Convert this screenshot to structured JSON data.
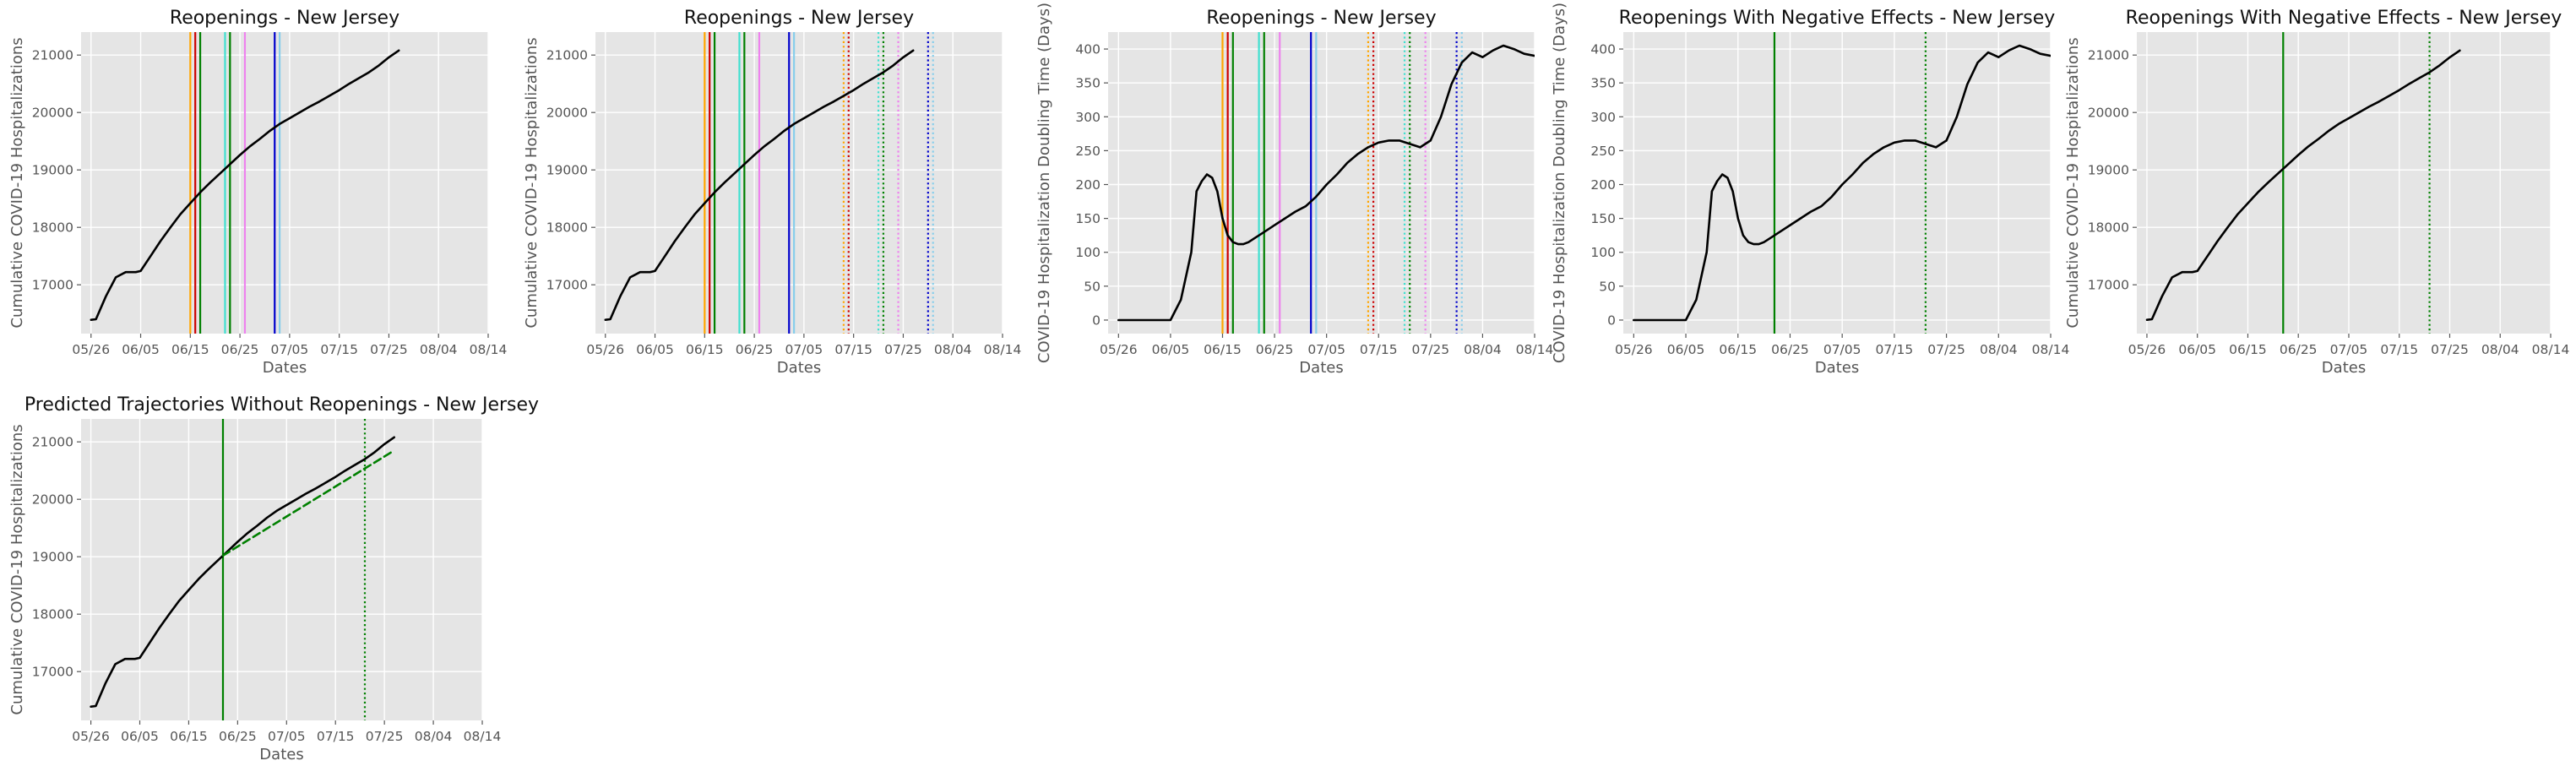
{
  "chart_data": [
    {
      "type": "line",
      "title": "Reopenings - New Jersey",
      "xlabel": "Dates",
      "ylabel": "Cumulative COVID-19 Hospitalizations",
      "x_ticks": [
        "05/26",
        "06/05",
        "06/15",
        "06/25",
        "07/05",
        "07/15",
        "07/25",
        "08/04",
        "08/14"
      ],
      "y_ticks": [
        17000,
        18000,
        19000,
        20000,
        21000
      ],
      "xlim": [
        "05/24",
        "08/14"
      ],
      "ylim": [
        16150,
        21400
      ],
      "grid": true,
      "series": [
        {
          "color": "#000000",
          "style": "solid",
          "x": [
            "05/26",
            "05/27",
            "05/29",
            "05/31",
            "06/02",
            "06/04",
            "06/05",
            "06/07",
            "06/09",
            "06/11",
            "06/13",
            "06/15",
            "06/17",
            "06/19",
            "06/21",
            "06/23",
            "06/25",
            "06/27",
            "06/29",
            "07/01",
            "07/03",
            "07/05",
            "07/07",
            "07/09",
            "07/11",
            "07/13",
            "07/15",
            "07/17",
            "07/19",
            "07/21",
            "07/23",
            "07/25",
            "07/27"
          ],
          "y": [
            16390,
            16400,
            16800,
            17130,
            17220,
            17220,
            17240,
            17500,
            17760,
            18000,
            18230,
            18420,
            18610,
            18780,
            18940,
            19100,
            19260,
            19410,
            19540,
            19680,
            19800,
            19900,
            20000,
            20100,
            20190,
            20290,
            20390,
            20500,
            20600,
            20700,
            20820,
            20960,
            21080
          ]
        }
      ],
      "vlines": [
        {
          "x": "06/15",
          "color": "#ffa500",
          "style": "solid"
        },
        {
          "x": "06/16",
          "color": "#cc0000",
          "style": "solid"
        },
        {
          "x": "06/17",
          "color": "#008000",
          "style": "solid"
        },
        {
          "x": "06/22",
          "color": "#40e0d0",
          "style": "solid"
        },
        {
          "x": "06/23",
          "color": "#008000",
          "style": "solid"
        },
        {
          "x": "06/26",
          "color": "#ee82ee",
          "style": "solid"
        },
        {
          "x": "07/02",
          "color": "#0000cc",
          "style": "solid"
        },
        {
          "x": "07/03",
          "color": "#87ceeb",
          "style": "solid"
        }
      ]
    },
    {
      "type": "line",
      "title": "Reopenings - New Jersey",
      "xlabel": "Dates",
      "ylabel": "Cumulative COVID-19 Hospitalizations",
      "x_ticks": [
        "05/26",
        "06/05",
        "06/15",
        "06/25",
        "07/05",
        "07/15",
        "07/25",
        "08/04",
        "08/14"
      ],
      "y_ticks": [
        17000,
        18000,
        19000,
        20000,
        21000
      ],
      "xlim": [
        "05/24",
        "08/14"
      ],
      "ylim": [
        16150,
        21400
      ],
      "grid": true,
      "series": [
        {
          "color": "#000000",
          "style": "solid",
          "x": [
            "05/26",
            "05/27",
            "05/29",
            "05/31",
            "06/02",
            "06/04",
            "06/05",
            "06/07",
            "06/09",
            "06/11",
            "06/13",
            "06/15",
            "06/17",
            "06/19",
            "06/21",
            "06/23",
            "06/25",
            "06/27",
            "06/29",
            "07/01",
            "07/03",
            "07/05",
            "07/07",
            "07/09",
            "07/11",
            "07/13",
            "07/15",
            "07/17",
            "07/19",
            "07/21",
            "07/23",
            "07/25",
            "07/27"
          ],
          "y": [
            16390,
            16400,
            16800,
            17130,
            17220,
            17220,
            17240,
            17500,
            17760,
            18000,
            18230,
            18420,
            18610,
            18780,
            18940,
            19100,
            19260,
            19410,
            19540,
            19680,
            19800,
            19900,
            20000,
            20100,
            20190,
            20290,
            20390,
            20500,
            20600,
            20700,
            20820,
            20960,
            21080
          ]
        }
      ],
      "vlines": [
        {
          "x": "06/15",
          "color": "#ffa500",
          "style": "solid"
        },
        {
          "x": "06/16",
          "color": "#cc0000",
          "style": "solid"
        },
        {
          "x": "06/17",
          "color": "#008000",
          "style": "solid"
        },
        {
          "x": "06/22",
          "color": "#40e0d0",
          "style": "solid"
        },
        {
          "x": "06/23",
          "color": "#008000",
          "style": "solid"
        },
        {
          "x": "06/26",
          "color": "#ee82ee",
          "style": "solid"
        },
        {
          "x": "07/02",
          "color": "#0000cc",
          "style": "solid"
        },
        {
          "x": "07/03",
          "color": "#87ceeb",
          "style": "solid"
        },
        {
          "x": "07/13",
          "color": "#ffa500",
          "style": "dotted"
        },
        {
          "x": "07/14",
          "color": "#cc0000",
          "style": "dotted"
        },
        {
          "x": "07/20",
          "color": "#40e0d0",
          "style": "dotted"
        },
        {
          "x": "07/21",
          "color": "#008000",
          "style": "dotted"
        },
        {
          "x": "07/24",
          "color": "#ee82ee",
          "style": "dotted"
        },
        {
          "x": "07/30",
          "color": "#0000cc",
          "style": "dotted"
        },
        {
          "x": "07/31",
          "color": "#87ceeb",
          "style": "dotted"
        }
      ]
    },
    {
      "type": "line",
      "title": "Reopenings - New Jersey",
      "xlabel": "Dates",
      "ylabel": "COVID-19 Hospitalization Doubling Time (Days)",
      "x_ticks": [
        "05/26",
        "06/05",
        "06/15",
        "06/25",
        "07/05",
        "07/15",
        "07/25",
        "08/04",
        "08/14"
      ],
      "y_ticks": [
        0,
        50,
        100,
        150,
        200,
        250,
        300,
        350,
        400
      ],
      "xlim": [
        "05/24",
        "08/14"
      ],
      "ylim": [
        -20,
        425
      ],
      "grid": true,
      "series": [
        {
          "color": "#000000",
          "style": "solid",
          "x": [
            "05/26",
            "05/28",
            "05/30",
            "06/01",
            "06/03",
            "06/05",
            "06/07",
            "06/09",
            "06/10",
            "06/11",
            "06/12",
            "06/13",
            "06/14",
            "06/15",
            "06/16",
            "06/17",
            "06/18",
            "06/19",
            "06/20",
            "06/21",
            "06/23",
            "06/25",
            "06/27",
            "06/29",
            "07/01",
            "07/03",
            "07/05",
            "07/07",
            "07/09",
            "07/11",
            "07/13",
            "07/15",
            "07/17",
            "07/19",
            "07/21",
            "07/23",
            "07/25",
            "07/27",
            "07/29",
            "07/31",
            "08/02",
            "08/04",
            "08/06",
            "08/08",
            "08/10",
            "08/12",
            "08/14"
          ],
          "y": [
            0,
            0,
            0,
            0,
            0,
            0,
            30,
            100,
            190,
            205,
            215,
            210,
            190,
            150,
            125,
            115,
            112,
            112,
            115,
            120,
            130,
            140,
            150,
            160,
            168,
            182,
            200,
            215,
            232,
            245,
            255,
            262,
            265,
            265,
            260,
            255,
            265,
            300,
            348,
            380,
            395,
            388,
            398,
            405,
            400,
            393,
            390
          ]
        }
      ],
      "vlines": [
        {
          "x": "06/15",
          "color": "#ffa500",
          "style": "solid"
        },
        {
          "x": "06/16",
          "color": "#cc0000",
          "style": "solid"
        },
        {
          "x": "06/17",
          "color": "#008000",
          "style": "solid"
        },
        {
          "x": "06/22",
          "color": "#40e0d0",
          "style": "solid"
        },
        {
          "x": "06/23",
          "color": "#008000",
          "style": "solid"
        },
        {
          "x": "06/26",
          "color": "#ee82ee",
          "style": "solid"
        },
        {
          "x": "07/02",
          "color": "#0000cc",
          "style": "solid"
        },
        {
          "x": "07/03",
          "color": "#87ceeb",
          "style": "solid"
        },
        {
          "x": "07/13",
          "color": "#ffa500",
          "style": "dotted"
        },
        {
          "x": "07/14",
          "color": "#cc0000",
          "style": "dotted"
        },
        {
          "x": "07/20",
          "color": "#40e0d0",
          "style": "dotted"
        },
        {
          "x": "07/21",
          "color": "#008000",
          "style": "dotted"
        },
        {
          "x": "07/24",
          "color": "#ee82ee",
          "style": "dotted"
        },
        {
          "x": "07/30",
          "color": "#0000cc",
          "style": "dotted"
        },
        {
          "x": "07/31",
          "color": "#87ceeb",
          "style": "dotted"
        }
      ]
    },
    {
      "type": "line",
      "title": "Reopenings With Negative Effects - New Jersey",
      "xlabel": "Dates",
      "ylabel": "COVID-19 Hospitalization Doubling Time (Days)",
      "x_ticks": [
        "05/26",
        "06/05",
        "06/15",
        "06/25",
        "07/05",
        "07/15",
        "07/25",
        "08/04",
        "08/14"
      ],
      "y_ticks": [
        0,
        50,
        100,
        150,
        200,
        250,
        300,
        350,
        400
      ],
      "xlim": [
        "05/24",
        "08/14"
      ],
      "ylim": [
        -20,
        425
      ],
      "grid": true,
      "series": [
        {
          "color": "#000000",
          "style": "solid",
          "x": [
            "05/26",
            "05/28",
            "05/30",
            "06/01",
            "06/03",
            "06/05",
            "06/07",
            "06/09",
            "06/10",
            "06/11",
            "06/12",
            "06/13",
            "06/14",
            "06/15",
            "06/16",
            "06/17",
            "06/18",
            "06/19",
            "06/20",
            "06/21",
            "06/23",
            "06/25",
            "06/27",
            "06/29",
            "07/01",
            "07/03",
            "07/05",
            "07/07",
            "07/09",
            "07/11",
            "07/13",
            "07/15",
            "07/17",
            "07/19",
            "07/21",
            "07/23",
            "07/25",
            "07/27",
            "07/29",
            "07/31",
            "08/02",
            "08/04",
            "08/06",
            "08/08",
            "08/10",
            "08/12",
            "08/14"
          ],
          "y": [
            0,
            0,
            0,
            0,
            0,
            0,
            30,
            100,
            190,
            205,
            215,
            210,
            190,
            150,
            125,
            115,
            112,
            112,
            115,
            120,
            130,
            140,
            150,
            160,
            168,
            182,
            200,
            215,
            232,
            245,
            255,
            262,
            265,
            265,
            260,
            255,
            265,
            300,
            348,
            380,
            395,
            388,
            398,
            405,
            400,
            393,
            390
          ]
        }
      ],
      "vlines": [
        {
          "x": "06/22",
          "color": "#008000",
          "style": "solid"
        },
        {
          "x": "07/21",
          "color": "#008000",
          "style": "dotted"
        }
      ]
    },
    {
      "type": "line",
      "title": "Reopenings With Negative Effects - New Jersey",
      "xlabel": "Dates",
      "ylabel": "Cumulative COVID-19 Hospitalizations",
      "x_ticks": [
        "05/26",
        "06/05",
        "06/15",
        "06/25",
        "07/05",
        "07/15",
        "07/25",
        "08/04",
        "08/14"
      ],
      "y_ticks": [
        17000,
        18000,
        19000,
        20000,
        21000
      ],
      "xlim": [
        "05/24",
        "08/14"
      ],
      "ylim": [
        16150,
        21400
      ],
      "grid": true,
      "series": [
        {
          "color": "#000000",
          "style": "solid",
          "x": [
            "05/26",
            "05/27",
            "05/29",
            "05/31",
            "06/02",
            "06/04",
            "06/05",
            "06/07",
            "06/09",
            "06/11",
            "06/13",
            "06/15",
            "06/17",
            "06/19",
            "06/21",
            "06/23",
            "06/25",
            "06/27",
            "06/29",
            "07/01",
            "07/03",
            "07/05",
            "07/07",
            "07/09",
            "07/11",
            "07/13",
            "07/15",
            "07/17",
            "07/19",
            "07/21",
            "07/23",
            "07/25",
            "07/27"
          ],
          "y": [
            16390,
            16400,
            16800,
            17130,
            17220,
            17220,
            17240,
            17500,
            17760,
            18000,
            18230,
            18420,
            18610,
            18780,
            18940,
            19100,
            19260,
            19410,
            19540,
            19680,
            19800,
            19900,
            20000,
            20100,
            20190,
            20290,
            20390,
            20500,
            20600,
            20700,
            20820,
            20960,
            21080
          ]
        }
      ],
      "vlines": [
        {
          "x": "06/22",
          "color": "#008000",
          "style": "solid"
        },
        {
          "x": "07/21",
          "color": "#008000",
          "style": "dotted"
        }
      ]
    },
    {
      "type": "line",
      "title": "Predicted Trajectories Without Reopenings - New Jersey",
      "xlabel": "Dates",
      "ylabel": "Cumulative COVID-19 Hospitalizations",
      "x_ticks": [
        "05/26",
        "06/05",
        "06/15",
        "06/25",
        "07/05",
        "07/15",
        "07/25",
        "08/04",
        "08/14"
      ],
      "y_ticks": [
        17000,
        18000,
        19000,
        20000,
        21000
      ],
      "xlim": [
        "05/24",
        "08/14"
      ],
      "ylim": [
        16150,
        21400
      ],
      "grid": true,
      "series": [
        {
          "color": "#000000",
          "style": "solid",
          "x": [
            "05/26",
            "05/27",
            "05/29",
            "05/31",
            "06/02",
            "06/04",
            "06/05",
            "06/07",
            "06/09",
            "06/11",
            "06/13",
            "06/15",
            "06/17",
            "06/19",
            "06/21",
            "06/23",
            "06/25",
            "06/27",
            "06/29",
            "07/01",
            "07/03",
            "07/05",
            "07/07",
            "07/09",
            "07/11",
            "07/13",
            "07/15",
            "07/17",
            "07/19",
            "07/21",
            "07/23",
            "07/25",
            "07/27"
          ],
          "y": [
            16390,
            16400,
            16800,
            17130,
            17220,
            17220,
            17240,
            17500,
            17760,
            18000,
            18230,
            18420,
            18610,
            18780,
            18940,
            19100,
            19260,
            19410,
            19540,
            19680,
            19800,
            19900,
            20000,
            20100,
            20190,
            20290,
            20390,
            20500,
            20600,
            20700,
            20820,
            20960,
            21080
          ]
        },
        {
          "color": "#008000",
          "style": "dashed",
          "x": [
            "06/22",
            "07/27"
          ],
          "y": [
            19020,
            20850
          ]
        }
      ],
      "vlines": [
        {
          "x": "06/22",
          "color": "#008000",
          "style": "solid"
        },
        {
          "x": "07/21",
          "color": "#008000",
          "style": "dotted"
        }
      ]
    }
  ]
}
